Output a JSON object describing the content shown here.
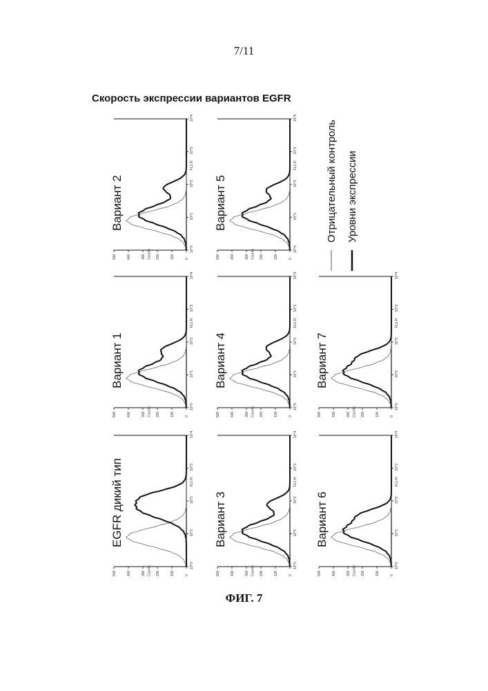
{
  "page_number": "7/11",
  "figure_title": "Скорость экспрессии вариантов EGFR",
  "caption": "ФИГ. 7",
  "axis_labels": {
    "x": "FL1-H",
    "y": "Counts"
  },
  "legend": [
    {
      "label": "Отрицательный контроль",
      "style": "thin"
    },
    {
      "label": "Уровни экспрессии",
      "style": "thick"
    }
  ],
  "chart_data": {
    "type": "line",
    "title": "Скорость экспрессии вариантов EGFR",
    "xlabel": "FL1-H",
    "ylabel": "Counts",
    "x_scale": "log",
    "xlim": [
      1,
      10000
    ],
    "x_ticks": [
      "10^0",
      "10^1",
      "10^2",
      "10^3",
      "10^4"
    ],
    "ylim": [
      0,
      500
    ],
    "y_ticks": [
      0,
      100,
      200,
      300,
      400,
      500
    ],
    "panels": [
      {
        "label": "EGFR дикий тип",
        "negative_peak": 8,
        "expression_peak": 60,
        "expression_shoulder": 150
      },
      {
        "label": "Вариант 1",
        "negative_peak": 8,
        "expression_peak": 12,
        "expression_shoulder": 60
      },
      {
        "label": "Вариант 2",
        "negative_peak": 8,
        "expression_peak": 12,
        "expression_shoulder": 80
      },
      {
        "label": "Вариант 3",
        "negative_peak": 8,
        "expression_peak": 12,
        "expression_shoulder": 80
      },
      {
        "label": "Вариант 4",
        "negative_peak": 8,
        "expression_peak": 12,
        "expression_shoulder": 70
      },
      {
        "label": "Вариант 5",
        "negative_peak": 8,
        "expression_peak": 12,
        "expression_shoulder": 70
      },
      {
        "label": "Вариант 6",
        "negative_peak": 8,
        "expression_peak": 12,
        "expression_shoulder": 40
      },
      {
        "label": "Вариант 7",
        "negative_peak": 8,
        "expression_peak": 12,
        "expression_shoulder": 40
      }
    ]
  }
}
